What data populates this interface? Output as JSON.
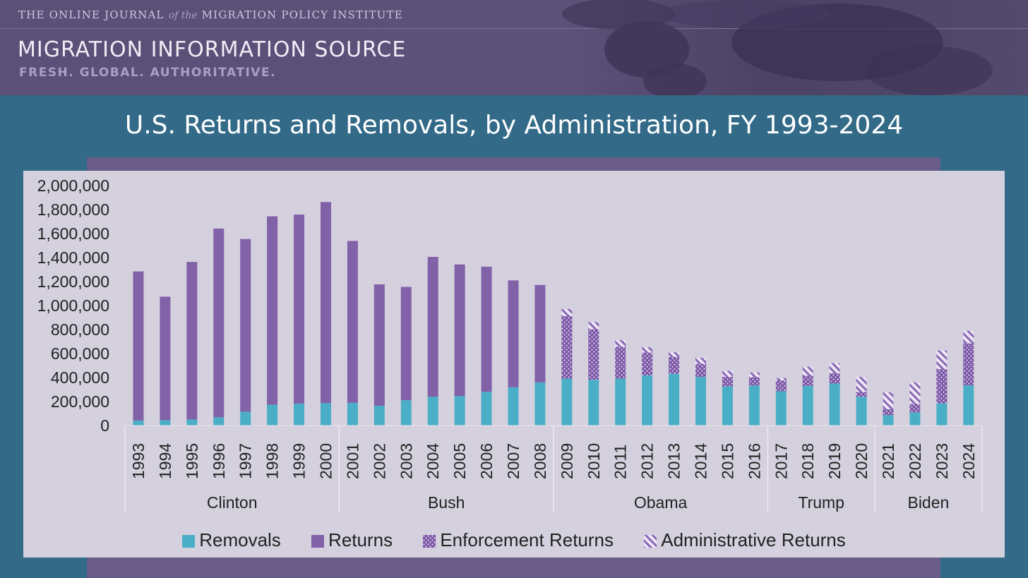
{
  "header": {
    "tagline_prefix": "THE ONLINE JOURNAL",
    "tagline_of": "of the",
    "tagline_suffix": "MIGRATION POLICY INSTITUTE",
    "brand": "MIGRATION INFORMATION SOURCE",
    "subbrand": "FRESH. GLOBAL. AUTHORITATIVE."
  },
  "colors": {
    "page_bg": "#336a88",
    "removals": "#4aafc6",
    "returns": "#8161a8",
    "enforcement": "#7a55a6",
    "administrative": "#8a68b6",
    "plot_bg": "#d5d0de"
  },
  "chart_data": {
    "type": "bar",
    "stacked": true,
    "title": "U.S. Returns and Removals, by Administration, FY 1993-2024",
    "xlabel": "",
    "ylabel": "",
    "ylim": [
      0,
      2000000
    ],
    "yticks": [
      0,
      200000,
      400000,
      600000,
      800000,
      1000000,
      1200000,
      1400000,
      1600000,
      1800000,
      2000000
    ],
    "ytick_labels": [
      "0",
      "200,000",
      "400,000",
      "600,000",
      "800,000",
      "1,000,000",
      "1,200,000",
      "1,400,000",
      "1,600,000",
      "1,800,000",
      "2,000,000"
    ],
    "categories": [
      "1993",
      "1994",
      "1995",
      "1996",
      "1997",
      "1998",
      "1999",
      "2000",
      "2001",
      "2002",
      "2003",
      "2004",
      "2005",
      "2006",
      "2007",
      "2008",
      "2009",
      "2010",
      "2011",
      "2012",
      "2013",
      "2014",
      "2015",
      "2016",
      "2017",
      "2018",
      "2019",
      "2020",
      "2021",
      "2022",
      "2023",
      "2024"
    ],
    "groups": [
      {
        "label": "Clinton",
        "start": 0,
        "count": 8
      },
      {
        "label": "Bush",
        "start": 8,
        "count": 8
      },
      {
        "label": "Obama",
        "start": 16,
        "count": 8
      },
      {
        "label": "Trump",
        "start": 24,
        "count": 4
      },
      {
        "label": "Biden",
        "start": 28,
        "count": 4
      }
    ],
    "series": [
      {
        "name": "Removals",
        "pattern": "solid-teal",
        "values": [
          42000,
          45000,
          51000,
          69000,
          115000,
          174000,
          183000,
          188000,
          189000,
          165000,
          211000,
          240000,
          246000,
          281000,
          319000,
          360000,
          392000,
          382000,
          392000,
          418000,
          432000,
          405000,
          326000,
          333000,
          286000,
          330000,
          350000,
          240000,
          86000,
          110000,
          185000,
          335000
        ]
      },
      {
        "name": "Returns",
        "pattern": "solid-purple",
        "values": [
          1243000,
          1029000,
          1313000,
          1573000,
          1440000,
          1570000,
          1575000,
          1675000,
          1350000,
          1012000,
          945000,
          1166000,
          1097000,
          1043000,
          891000,
          812000,
          0,
          0,
          0,
          0,
          0,
          0,
          0,
          0,
          0,
          0,
          0,
          0,
          0,
          0,
          0,
          0
        ]
      },
      {
        "name": "Enforcement Returns",
        "pattern": "dotted",
        "values": [
          0,
          0,
          0,
          0,
          0,
          0,
          0,
          0,
          0,
          0,
          0,
          0,
          0,
          0,
          0,
          0,
          520000,
          420000,
          265000,
          190000,
          140000,
          110000,
          80000,
          70000,
          90000,
          85000,
          85000,
          40000,
          50000,
          70000,
          285000,
          350000
        ]
      },
      {
        "name": "Administrative Returns",
        "pattern": "hatched",
        "values": [
          0,
          0,
          0,
          0,
          0,
          0,
          0,
          0,
          0,
          0,
          0,
          0,
          0,
          0,
          0,
          0,
          60000,
          60000,
          55000,
          45000,
          40000,
          50000,
          50000,
          40000,
          20000,
          75000,
          85000,
          125000,
          140000,
          180000,
          155000,
          105000
        ]
      }
    ],
    "legend_position": "bottom",
    "grid": false
  }
}
